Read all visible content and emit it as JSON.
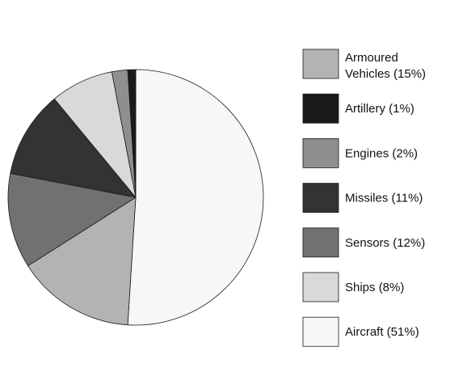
{
  "chart_data": {
    "type": "pie",
    "title": "",
    "legend_placement": "right",
    "slices": [
      {
        "label": "Aircraft",
        "value": 51,
        "pct_label": "(51%)",
        "color": "#f7f7f7"
      },
      {
        "label": "Armoured Vehicles",
        "value": 15,
        "pct_label": "(15%)",
        "color": "#b3b3b3"
      },
      {
        "label": "Sensors",
        "value": 12,
        "pct_label": "(12%)",
        "color": "#717171"
      },
      {
        "label": "Missiles",
        "value": 11,
        "pct_label": "(11%)",
        "color": "#333333"
      },
      {
        "label": "Ships",
        "value": 8,
        "pct_label": "(8%)",
        "color": "#d9d9d9"
      },
      {
        "label": "Engines",
        "value": 2,
        "pct_label": "(2%)",
        "color": "#8f8f8f"
      },
      {
        "label": "Artillery",
        "value": 1,
        "pct_label": "(1%)",
        "color": "#1a1a1a"
      }
    ],
    "legend_order": [
      "Armoured Vehicles",
      "Artillery",
      "Engines",
      "Missiles",
      "Sensors",
      "Ships",
      "Aircraft"
    ]
  }
}
